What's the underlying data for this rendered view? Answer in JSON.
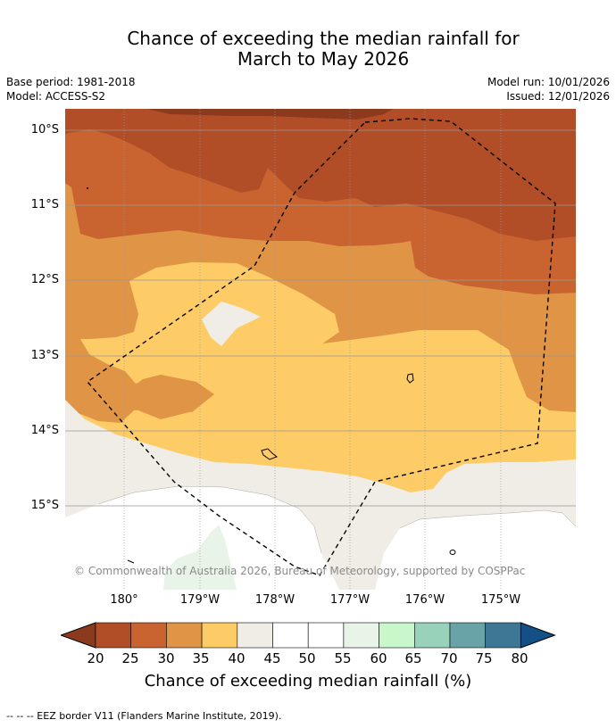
{
  "title_line1": "Chance of exceeding the median rainfall for",
  "title_line2": "March to May 2026",
  "base_period": "Base period: 1981-2018",
  "model": "Model: ACCESS-S2",
  "model_run": "Model run: 10/01/2026",
  "issued": "Issued: 12/01/2026",
  "copyright": "© Commonwealth of Australia 2026, Bureau of Meteorology, supported by COSPPac",
  "lat_labels": [
    "10°S",
    "11°S",
    "12°S",
    "13°S",
    "14°S",
    "15°S"
  ],
  "lon_labels": [
    "180°",
    "179°W",
    "178°W",
    "177°W",
    "176°W",
    "175°W"
  ],
  "colorbar": {
    "ticks": [
      "20",
      "25",
      "30",
      "35",
      "40",
      "45",
      "50",
      "55",
      "60",
      "65",
      "70",
      "75",
      "80"
    ],
    "colors": [
      "#8b3a1e",
      "#b14d27",
      "#c96431",
      "#e09445",
      "#fecc66",
      "#f0ece6",
      "#ffffff",
      "#ffffff",
      "#e8f4e8",
      "#c9f7cb",
      "#99d2ba",
      "#6aa3a7",
      "#3c7796",
      "#144f86"
    ],
    "label": "Chance of exceeding median rainfall (%)"
  },
  "legend_text": "--  --  -- EEZ border V11 (Flanders Marine Institute, 2019)."
}
